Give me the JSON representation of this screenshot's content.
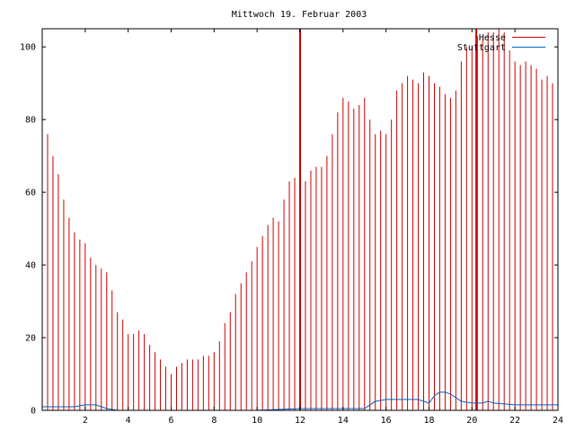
{
  "chart_data": {
    "type": "bar",
    "title": "Mittwoch 19. Februar 2003",
    "xlabel": "",
    "ylabel": "",
    "xlim": [
      0,
      24
    ],
    "ylim": [
      0,
      105
    ],
    "xticks": [
      2,
      4,
      6,
      8,
      10,
      12,
      14,
      16,
      18,
      20,
      22,
      24
    ],
    "yticks": [
      0,
      20,
      40,
      60,
      80,
      100
    ],
    "grid": false,
    "legend_position": "top-right",
    "series": [
      {
        "name": "Hesse",
        "color": "#cc0000",
        "style": "impulses",
        "x": [
          0.0,
          0.25,
          0.5,
          0.75,
          1.0,
          1.25,
          1.5,
          1.75,
          2.0,
          2.25,
          2.5,
          2.75,
          3.0,
          3.25,
          3.5,
          3.75,
          4.0,
          4.25,
          4.5,
          4.75,
          5.0,
          5.25,
          5.5,
          5.75,
          6.0,
          6.25,
          6.5,
          6.75,
          7.0,
          7.25,
          7.5,
          7.75,
          8.0,
          8.25,
          8.5,
          8.75,
          9.0,
          9.25,
          9.5,
          9.75,
          10.0,
          10.25,
          10.5,
          10.75,
          11.0,
          11.25,
          11.5,
          11.75,
          12.0,
          12.25,
          12.5,
          12.75,
          13.0,
          13.25,
          13.5,
          13.75,
          14.0,
          14.25,
          14.5,
          14.75,
          15.0,
          15.25,
          15.5,
          15.75,
          16.0,
          16.25,
          16.5,
          16.75,
          17.0,
          17.25,
          17.5,
          17.75,
          18.0,
          18.25,
          18.5,
          18.75,
          19.0,
          19.25,
          19.5,
          19.75,
          20.0,
          20.25,
          20.5,
          20.75,
          21.0,
          21.25,
          21.5,
          21.75,
          22.0,
          22.25,
          22.5,
          22.75,
          23.0,
          23.25,
          23.5,
          23.75,
          24.0
        ],
        "values": [
          85,
          76,
          70,
          65,
          58,
          53,
          49,
          47,
          46,
          42,
          40,
          39,
          38,
          33,
          27,
          25,
          21,
          21,
          22,
          21,
          18,
          16,
          14,
          12,
          10,
          12,
          13,
          14,
          14,
          14,
          15,
          15,
          16,
          19,
          24,
          27,
          32,
          35,
          38,
          41,
          45,
          48,
          51,
          53,
          52,
          58,
          63,
          64,
          62,
          63,
          66,
          67,
          67,
          70,
          76,
          82,
          86,
          85,
          83,
          84,
          86,
          80,
          76,
          77,
          76,
          80,
          88,
          90,
          92,
          91,
          90,
          93,
          92,
          90,
          89,
          87,
          86,
          88,
          96,
          100,
          100,
          103,
          102,
          104,
          104,
          105,
          104,
          99,
          96,
          95,
          96,
          95,
          94,
          91,
          92,
          90,
          88
        ]
      },
      {
        "name": "Stuttgart",
        "color": "#0060c0",
        "style": "line",
        "x": [
          0.0,
          1.0,
          1.5,
          2.0,
          2.5,
          3.0,
          3.5,
          4.0,
          6.0,
          8.0,
          10.0,
          12.0,
          14.0,
          15.0,
          15.5,
          16.0,
          16.5,
          17.0,
          17.5,
          18.0,
          18.25,
          18.5,
          18.75,
          19.0,
          19.25,
          19.5,
          20.0,
          20.5,
          20.75,
          21.0,
          22.0,
          23.0,
          24.0
        ],
        "values": [
          1,
          1,
          1,
          1.5,
          1.5,
          0.5,
          0,
          0,
          0,
          0,
          0,
          0.5,
          0.5,
          0.5,
          2.5,
          3,
          3,
          3,
          3,
          2,
          4,
          5,
          5,
          4.5,
          3.5,
          2.5,
          2,
          2,
          2.5,
          2,
          1.5,
          1.5,
          1.5
        ]
      }
    ],
    "markers": [
      {
        "x": 12.0,
        "color": "#cc0000"
      },
      {
        "x": 20.2,
        "color": "#cc0000"
      }
    ]
  }
}
